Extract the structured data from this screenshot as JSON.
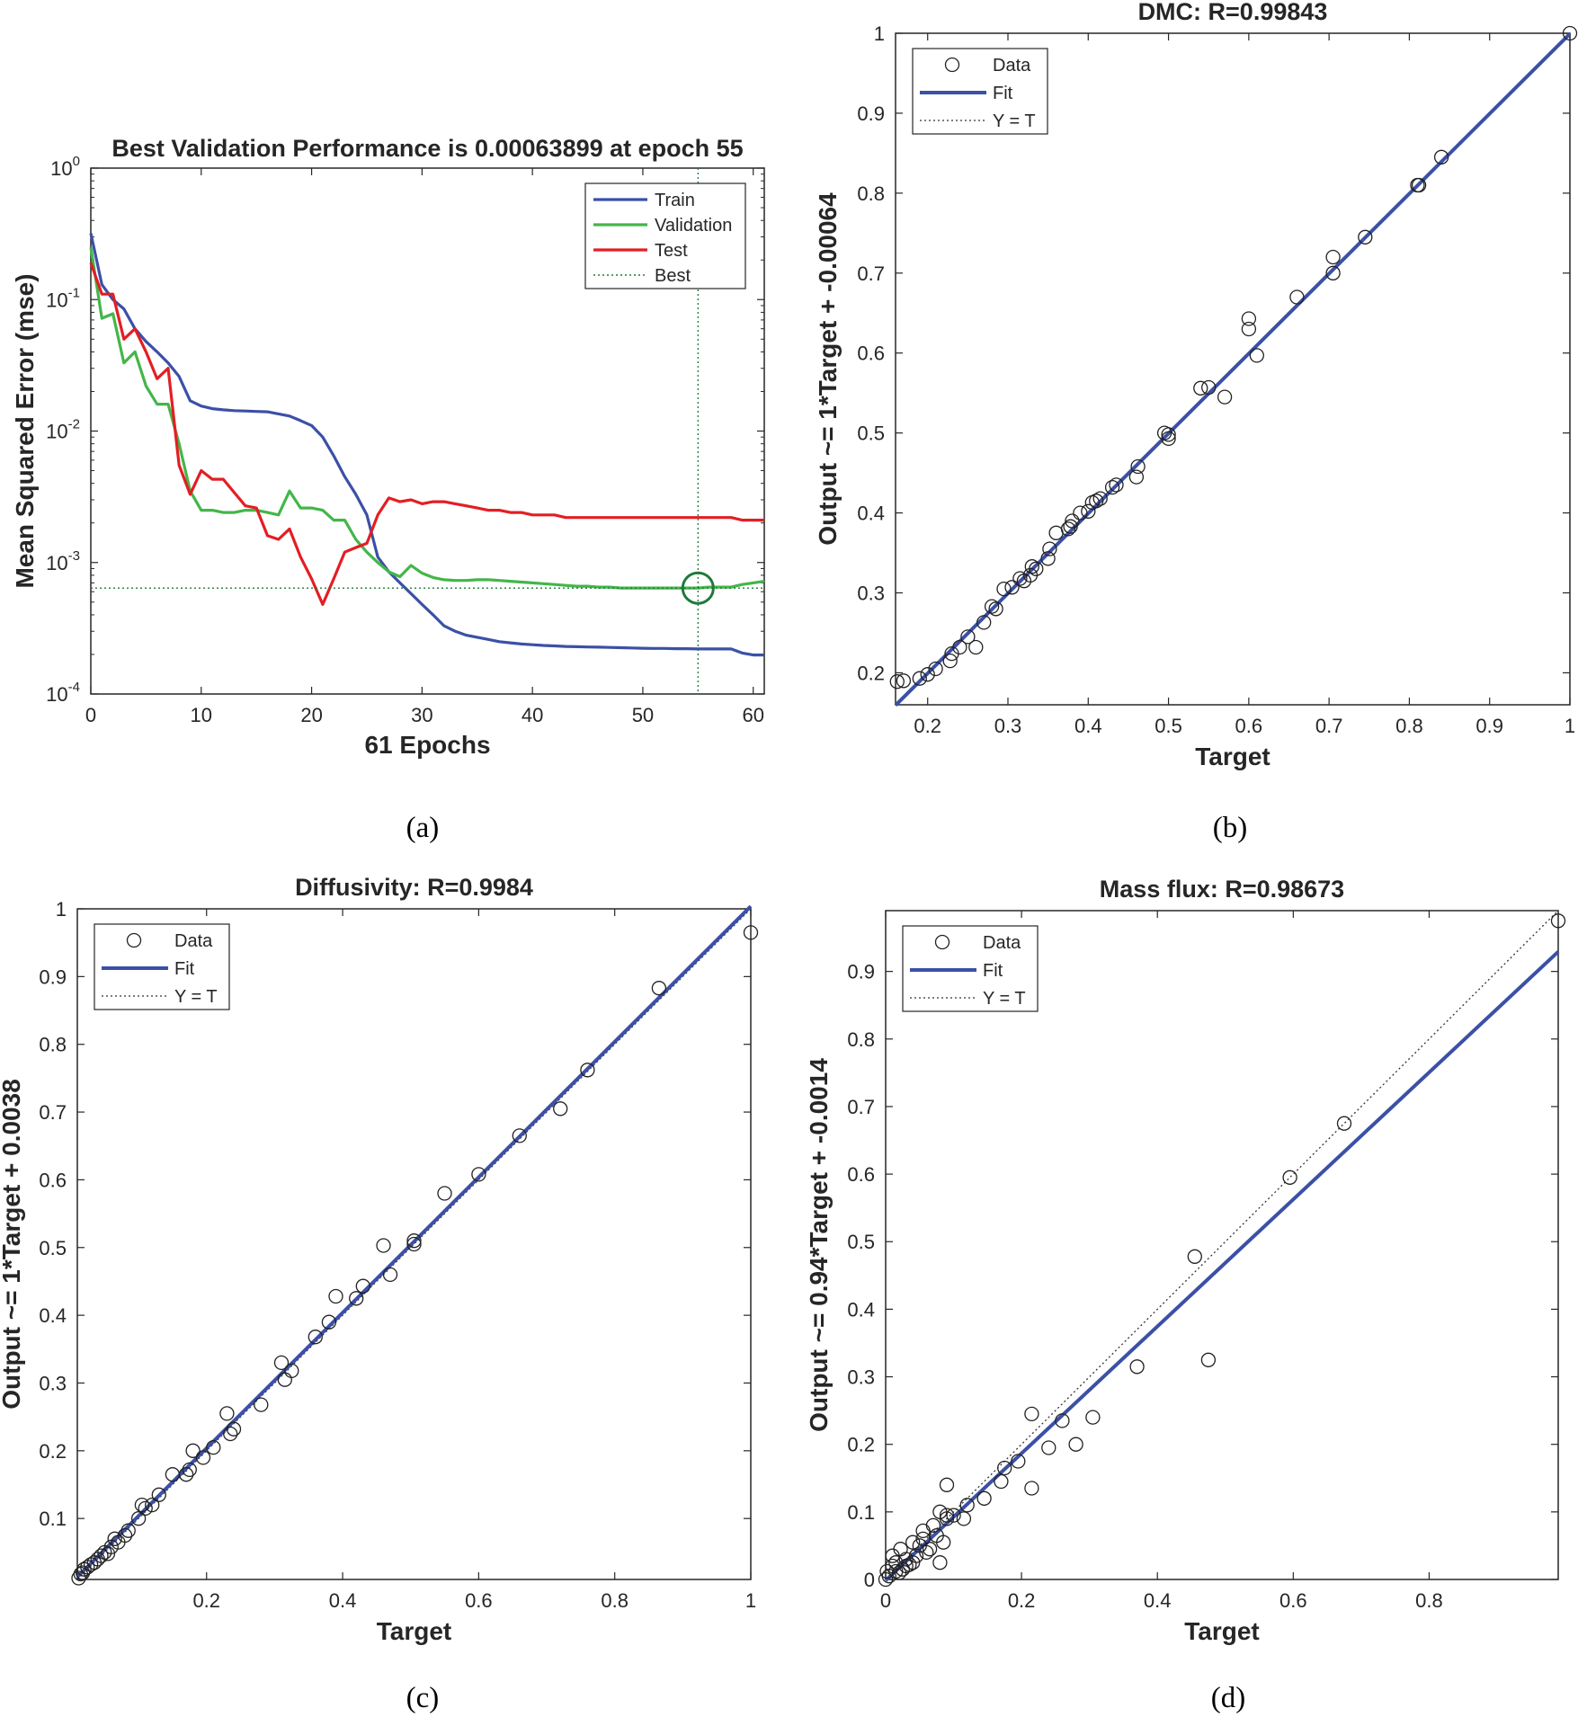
{
  "captions": [
    "(a)",
    "(b)",
    "(c)",
    "(d)"
  ],
  "colors": {
    "train": "#3b50a6",
    "validation": "#43b649",
    "test": "#e31e24",
    "best": "#1f7a3a",
    "fit": "#3b50a6",
    "ident": "#333333",
    "data": "#222222"
  },
  "chart_data": [
    {
      "type": "line",
      "title": "Best Validation Performance is 0.00063899 at epoch 55",
      "xlabel": "61 Epochs",
      "ylabel": "Mean Squared Error  (mse)",
      "yscale": "log",
      "xlim": [
        0,
        61
      ],
      "ylim": [
        0.0001,
        1
      ],
      "xticks": [
        0,
        10,
        20,
        30,
        40,
        50,
        60
      ],
      "yticks": [
        {
          "base": "10",
          "exp": "-4"
        },
        {
          "base": "10",
          "exp": "-3"
        },
        {
          "base": "10",
          "exp": "-2"
        },
        {
          "base": "10",
          "exp": "-1"
        },
        {
          "base": "10",
          "exp": "0"
        }
      ],
      "best_epoch": 55,
      "best_value": 0.00063899,
      "legend": [
        "Train",
        "Validation",
        "Test",
        "Best"
      ],
      "series": [
        {
          "name": "Train",
          "x": [
            0,
            1,
            2,
            3,
            4,
            5,
            6,
            7,
            8,
            9,
            10,
            11,
            12,
            13,
            14,
            15,
            16,
            17,
            18,
            19,
            20,
            21,
            22,
            23,
            24,
            25,
            26,
            27,
            28,
            29,
            30,
            31,
            32,
            33,
            34,
            35,
            36,
            37,
            38,
            39,
            40,
            41,
            42,
            43,
            44,
            45,
            46,
            47,
            48,
            49,
            50,
            51,
            52,
            53,
            54,
            55,
            56,
            57,
            58,
            59,
            60,
            61
          ],
          "values": [
            0.32,
            0.13,
            0.1,
            0.085,
            0.06,
            0.048,
            0.04,
            0.033,
            0.026,
            0.017,
            0.0155,
            0.0148,
            0.0145,
            0.0143,
            0.0142,
            0.0141,
            0.014,
            0.0135,
            0.013,
            0.012,
            0.011,
            0.009,
            0.0065,
            0.0045,
            0.0033,
            0.0023,
            0.0011,
            0.00085,
            0.0007,
            0.00058,
            0.00048,
            0.0004,
            0.00033,
            0.0003,
            0.00028,
            0.00027,
            0.00026,
            0.00025,
            0.000245,
            0.00024,
            0.000237,
            0.000234,
            0.000232,
            0.00023,
            0.000229,
            0.000228,
            0.000227,
            0.000226,
            0.000225,
            0.000224,
            0.000223,
            0.000222,
            0.000222,
            0.000221,
            0.000221,
            0.00022,
            0.00022,
            0.00022,
            0.00022,
            0.000205,
            0.000198,
            0.000198
          ]
        },
        {
          "name": "Validation",
          "x": [
            0,
            1,
            2,
            3,
            4,
            5,
            6,
            7,
            8,
            9,
            10,
            11,
            12,
            13,
            14,
            15,
            16,
            17,
            18,
            19,
            20,
            21,
            22,
            23,
            24,
            25,
            26,
            27,
            28,
            29,
            30,
            31,
            32,
            33,
            34,
            35,
            36,
            37,
            38,
            39,
            40,
            41,
            42,
            43,
            44,
            45,
            46,
            47,
            48,
            49,
            50,
            51,
            52,
            53,
            54,
            55,
            56,
            57,
            58,
            59,
            60,
            61
          ],
          "values": [
            0.25,
            0.072,
            0.078,
            0.033,
            0.04,
            0.022,
            0.016,
            0.016,
            0.008,
            0.0035,
            0.0025,
            0.0025,
            0.0024,
            0.0024,
            0.0025,
            0.0025,
            0.0024,
            0.0023,
            0.0035,
            0.0026,
            0.0026,
            0.0025,
            0.0021,
            0.0021,
            0.0015,
            0.0012,
            0.001,
            0.00085,
            0.00078,
            0.00095,
            0.00083,
            0.00077,
            0.00074,
            0.00073,
            0.00073,
            0.00074,
            0.00074,
            0.00073,
            0.00072,
            0.00071,
            0.0007,
            0.00069,
            0.00068,
            0.00067,
            0.00066,
            0.00066,
            0.00065,
            0.00065,
            0.00064,
            0.00064,
            0.00064,
            0.00064,
            0.00064,
            0.00064,
            0.00064,
            0.00064,
            0.00065,
            0.00065,
            0.00065,
            0.00068,
            0.0007,
            0.00072
          ]
        },
        {
          "name": "Test",
          "x": [
            0,
            1,
            2,
            3,
            4,
            5,
            6,
            7,
            8,
            9,
            10,
            11,
            12,
            13,
            14,
            15,
            16,
            17,
            18,
            19,
            20,
            21,
            22,
            23,
            24,
            25,
            26,
            27,
            28,
            29,
            30,
            31,
            32,
            33,
            34,
            35,
            36,
            37,
            38,
            39,
            40,
            41,
            42,
            43,
            44,
            45,
            46,
            47,
            48,
            49,
            50,
            51,
            52,
            53,
            54,
            55,
            56,
            57,
            58,
            59,
            60,
            61
          ],
          "values": [
            0.19,
            0.11,
            0.11,
            0.05,
            0.06,
            0.04,
            0.025,
            0.03,
            0.0055,
            0.0033,
            0.005,
            0.0043,
            0.0043,
            0.0034,
            0.0027,
            0.0026,
            0.0016,
            0.0015,
            0.0018,
            0.0011,
            0.00075,
            0.00048,
            0.00075,
            0.0012,
            0.0013,
            0.0014,
            0.0023,
            0.0031,
            0.0029,
            0.003,
            0.0028,
            0.0029,
            0.0029,
            0.0028,
            0.0027,
            0.0026,
            0.0025,
            0.0025,
            0.0024,
            0.0024,
            0.0023,
            0.0023,
            0.0023,
            0.0022,
            0.0022,
            0.0022,
            0.0022,
            0.0022,
            0.0022,
            0.0022,
            0.0022,
            0.0022,
            0.0022,
            0.0022,
            0.0022,
            0.0022,
            0.0022,
            0.0022,
            0.0022,
            0.0021,
            0.0021,
            0.0021
          ]
        }
      ]
    },
    {
      "type": "scatter",
      "title": "DMC: R=0.99843",
      "xlabel": "Target",
      "ylabel": "Output ~= 1*Target + -0.00064",
      "xlim": [
        0.16,
        1
      ],
      "ylim": [
        0.16,
        1
      ],
      "xticks": [
        "0.2",
        "0.3",
        "0.4",
        "0.5",
        "0.6",
        "0.7",
        "0.8",
        "0.9",
        "1"
      ],
      "yticks": [
        "0.2",
        "0.3",
        "0.4",
        "0.5",
        "0.6",
        "0.7",
        "0.8",
        "0.9",
        "1"
      ],
      "fit": {
        "slope": 1,
        "intercept": -0.00064
      },
      "legend": [
        "Data",
        "Fit",
        "Y = T"
      ],
      "points": [
        [
          0.162,
          0.189
        ],
        [
          0.17,
          0.19
        ],
        [
          0.19,
          0.193
        ],
        [
          0.2,
          0.198
        ],
        [
          0.21,
          0.205
        ],
        [
          0.228,
          0.215
        ],
        [
          0.23,
          0.224
        ],
        [
          0.24,
          0.232
        ],
        [
          0.25,
          0.245
        ],
        [
          0.26,
          0.232
        ],
        [
          0.27,
          0.263
        ],
        [
          0.28,
          0.283
        ],
        [
          0.285,
          0.28
        ],
        [
          0.295,
          0.305
        ],
        [
          0.305,
          0.307
        ],
        [
          0.315,
          0.318
        ],
        [
          0.32,
          0.315
        ],
        [
          0.328,
          0.322
        ],
        [
          0.33,
          0.333
        ],
        [
          0.335,
          0.33
        ],
        [
          0.35,
          0.343
        ],
        [
          0.352,
          0.355
        ],
        [
          0.36,
          0.375
        ],
        [
          0.375,
          0.38
        ],
        [
          0.378,
          0.383
        ],
        [
          0.38,
          0.39
        ],
        [
          0.39,
          0.4
        ],
        [
          0.4,
          0.402
        ],
        [
          0.405,
          0.413
        ],
        [
          0.41,
          0.415
        ],
        [
          0.415,
          0.418
        ],
        [
          0.43,
          0.432
        ],
        [
          0.435,
          0.435
        ],
        [
          0.46,
          0.445
        ],
        [
          0.462,
          0.458
        ],
        [
          0.495,
          0.5
        ],
        [
          0.5,
          0.498
        ],
        [
          0.5,
          0.493
        ],
        [
          0.54,
          0.556
        ],
        [
          0.55,
          0.557
        ],
        [
          0.57,
          0.545
        ],
        [
          0.6,
          0.643
        ],
        [
          0.6,
          0.63
        ],
        [
          0.61,
          0.597
        ],
        [
          0.66,
          0.67
        ],
        [
          0.705,
          0.7
        ],
        [
          0.705,
          0.72
        ],
        [
          0.745,
          0.745
        ],
        [
          0.81,
          0.81
        ],
        [
          0.812,
          0.81
        ],
        [
          0.84,
          0.845
        ],
        [
          1.0,
          1.0
        ]
      ]
    },
    {
      "type": "scatter",
      "title": "Diffusivity: R=0.9984",
      "xlabel": "Target",
      "ylabel": "Output ~= 1*Target + 0.0038",
      "xlim": [
        0.01,
        1
      ],
      "ylim": [
        0.01,
        1
      ],
      "xticks": [
        "0.2",
        "0.4",
        "0.6",
        "0.8",
        "1"
      ],
      "yticks": [
        "0.1",
        "0.2",
        "0.3",
        "0.4",
        "0.5",
        "0.6",
        "0.7",
        "0.8",
        "0.9",
        "1"
      ],
      "fit": {
        "slope": 1,
        "intercept": 0.0038
      },
      "legend": [
        "Data",
        "Fit",
        "Y = T"
      ],
      "points": [
        [
          0.012,
          0.012
        ],
        [
          0.015,
          0.018
        ],
        [
          0.018,
          0.02
        ],
        [
          0.02,
          0.025
        ],
        [
          0.025,
          0.028
        ],
        [
          0.03,
          0.032
        ],
        [
          0.035,
          0.035
        ],
        [
          0.04,
          0.04
        ],
        [
          0.045,
          0.045
        ],
        [
          0.05,
          0.05
        ],
        [
          0.055,
          0.048
        ],
        [
          0.06,
          0.058
        ],
        [
          0.065,
          0.07
        ],
        [
          0.07,
          0.065
        ],
        [
          0.08,
          0.075
        ],
        [
          0.085,
          0.082
        ],
        [
          0.1,
          0.1
        ],
        [
          0.105,
          0.12
        ],
        [
          0.11,
          0.115
        ],
        [
          0.12,
          0.12
        ],
        [
          0.13,
          0.135
        ],
        [
          0.15,
          0.165
        ],
        [
          0.17,
          0.165
        ],
        [
          0.175,
          0.172
        ],
        [
          0.18,
          0.2
        ],
        [
          0.195,
          0.19
        ],
        [
          0.21,
          0.205
        ],
        [
          0.23,
          0.255
        ],
        [
          0.235,
          0.225
        ],
        [
          0.24,
          0.232
        ],
        [
          0.28,
          0.268
        ],
        [
          0.31,
          0.33
        ],
        [
          0.315,
          0.305
        ],
        [
          0.325,
          0.318
        ],
        [
          0.36,
          0.368
        ],
        [
          0.38,
          0.39
        ],
        [
          0.39,
          0.428
        ],
        [
          0.42,
          0.425
        ],
        [
          0.43,
          0.443
        ],
        [
          0.46,
          0.503
        ],
        [
          0.47,
          0.46
        ],
        [
          0.505,
          0.505
        ],
        [
          0.505,
          0.51
        ],
        [
          0.55,
          0.58
        ],
        [
          0.6,
          0.608
        ],
        [
          0.66,
          0.665
        ],
        [
          0.72,
          0.705
        ],
        [
          0.76,
          0.762
        ],
        [
          0.865,
          0.883
        ],
        [
          1.0,
          0.965
        ]
      ]
    },
    {
      "type": "scatter",
      "title": "Mass flux: R=0.98673",
      "xlabel": "Target",
      "ylabel": "Output ~= 0.94*Target + -0.0014",
      "xlim": [
        0,
        0.99
      ],
      "ylim": [
        0,
        0.99
      ],
      "xticks": [
        "0",
        "0.2",
        "0.4",
        "0.6",
        "0.8"
      ],
      "yticks": [
        "0",
        "0.1",
        "0.2",
        "0.3",
        "0.4",
        "0.5",
        "0.6",
        "0.7",
        "0.8",
        "0.9"
      ],
      "fit": {
        "slope": 0.94,
        "intercept": -0.0014
      },
      "legend": [
        "Data",
        "Fit",
        "Y = T"
      ],
      "points": [
        [
          0.0,
          0.0
        ],
        [
          0.002,
          0.012
        ],
        [
          0.005,
          0.005
        ],
        [
          0.01,
          0.02
        ],
        [
          0.01,
          0.035
        ],
        [
          0.015,
          0.012
        ],
        [
          0.015,
          0.025
        ],
        [
          0.02,
          0.01
        ],
        [
          0.022,
          0.045
        ],
        [
          0.025,
          0.015
        ],
        [
          0.03,
          0.02
        ],
        [
          0.03,
          0.03
        ],
        [
          0.035,
          0.022
        ],
        [
          0.04,
          0.025
        ],
        [
          0.04,
          0.055
        ],
        [
          0.045,
          0.035
        ],
        [
          0.05,
          0.05
        ],
        [
          0.055,
          0.06
        ],
        [
          0.055,
          0.072
        ],
        [
          0.06,
          0.04
        ],
        [
          0.065,
          0.045
        ],
        [
          0.07,
          0.08
        ],
        [
          0.075,
          0.065
        ],
        [
          0.08,
          0.1
        ],
        [
          0.08,
          0.025
        ],
        [
          0.085,
          0.055
        ],
        [
          0.09,
          0.09
        ],
        [
          0.09,
          0.095
        ],
        [
          0.09,
          0.14
        ],
        [
          0.1,
          0.095
        ],
        [
          0.115,
          0.09
        ],
        [
          0.12,
          0.11
        ],
        [
          0.145,
          0.12
        ],
        [
          0.17,
          0.145
        ],
        [
          0.175,
          0.165
        ],
        [
          0.195,
          0.175
        ],
        [
          0.215,
          0.135
        ],
        [
          0.215,
          0.245
        ],
        [
          0.24,
          0.195
        ],
        [
          0.26,
          0.235
        ],
        [
          0.28,
          0.2
        ],
        [
          0.305,
          0.24
        ],
        [
          0.37,
          0.315
        ],
        [
          0.455,
          0.478
        ],
        [
          0.475,
          0.325
        ],
        [
          0.595,
          0.595
        ],
        [
          0.675,
          0.675
        ],
        [
          0.99,
          0.975
        ]
      ]
    }
  ]
}
